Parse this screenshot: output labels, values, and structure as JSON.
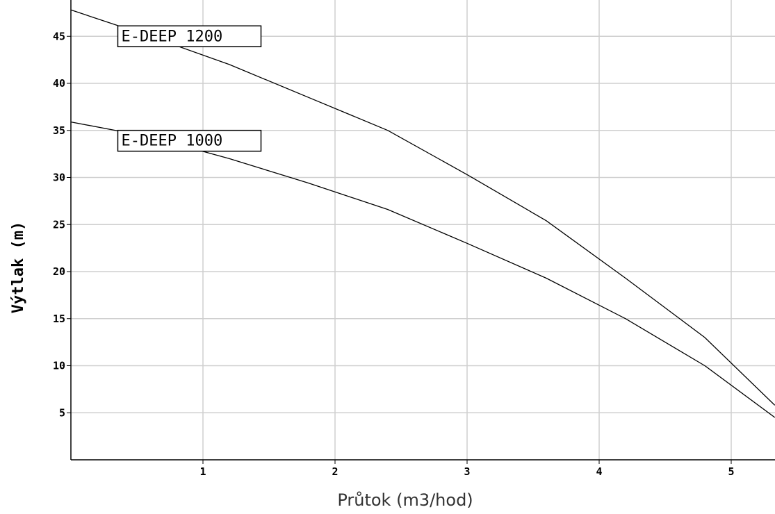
{
  "chart_data": {
    "type": "line",
    "xlabel": "Průtok (m3/hod)",
    "ylabel": "Výtlak (m)",
    "xlim": [
      0,
      5.33
    ],
    "ylim": [
      0,
      48
    ],
    "xticks": [
      1,
      2,
      3,
      4,
      5
    ],
    "yticks": [
      5,
      10,
      15,
      20,
      25,
      30,
      35,
      40,
      45
    ],
    "grid": true,
    "series": [
      {
        "name": "E-DEEP 1200",
        "x": [
          0,
          0.6,
          1.2,
          1.8,
          2.4,
          3.0,
          3.6,
          4.2,
          4.8,
          5.33
        ],
        "y": [
          47.8,
          45.0,
          42.0,
          38.5,
          35.0,
          30.3,
          25.4,
          19.3,
          13.0,
          5.8
        ]
      },
      {
        "name": "E-DEEP 1000",
        "x": [
          0,
          0.6,
          1.2,
          1.8,
          2.4,
          3.0,
          3.6,
          4.2,
          4.8,
          5.33
        ],
        "y": [
          35.9,
          34.3,
          32.0,
          29.4,
          26.6,
          23.0,
          19.3,
          15.0,
          10.0,
          4.5
        ]
      }
    ],
    "annotations": [
      {
        "series": "E-DEEP 1200",
        "text": "E-DEEP 1200",
        "x": 0.25,
        "y": 45.0
      },
      {
        "series": "E-DEEP 1000",
        "text": "E-DEEP 1000",
        "x": 0.25,
        "y": 33.9
      }
    ]
  }
}
